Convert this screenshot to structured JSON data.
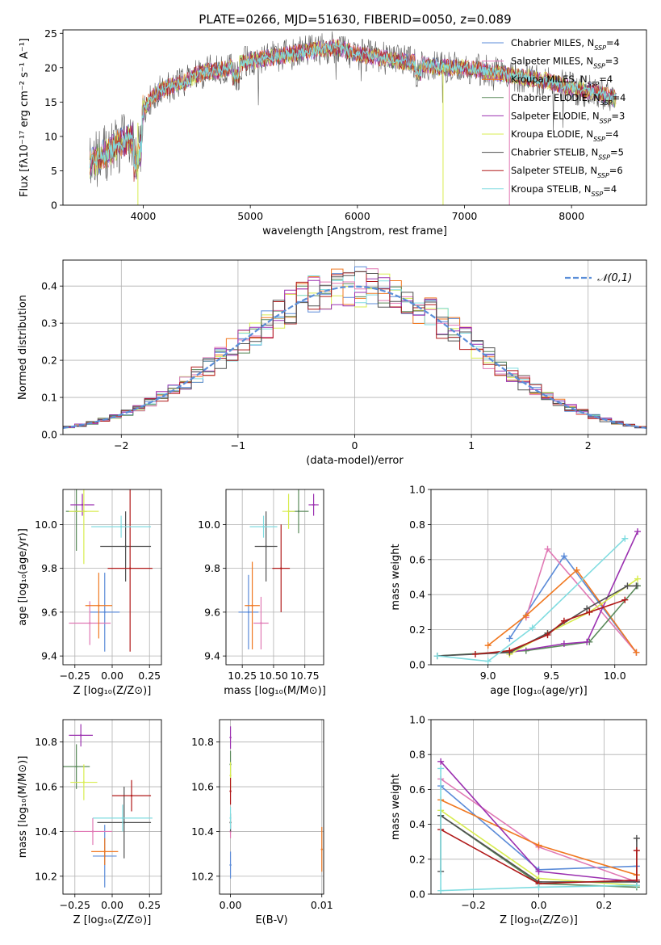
{
  "palette": {
    "cm": "#5b8bd8",
    "sm": "#e078b4",
    "km": "#f07820",
    "ce": "#5a8a5a",
    "se": "#9b30b0",
    "ke": "#d8ec50",
    "cs": "#505050",
    "ss": "#b01818",
    "ks": "#80dce0"
  },
  "chart_data": [
    {
      "id": "spectrum",
      "type": "line",
      "title": "PLATE=0266, MJD=51630, FIBERID=0050, z=0.089",
      "xlabel": "wavelength [Angstrom, rest frame]",
      "ylabel": "Flux [fλ10⁻¹⁷ erg cm⁻² s⁻¹ A⁻¹]",
      "xlim": [
        3250,
        8700
      ],
      "ylim": [
        0,
        25.5
      ],
      "xticks": [
        4000,
        5000,
        6000,
        7000,
        8000
      ],
      "yticks": [
        0,
        5,
        10,
        15,
        20,
        25
      ],
      "grid": false,
      "legend_position": "top-right",
      "legend": [
        {
          "key": "cm",
          "label": "Chabrier MILES, N_SSP=4"
        },
        {
          "key": "sm",
          "label": "Salpeter MILES, N_SSP=3"
        },
        {
          "key": "km",
          "label": "Kroupa MILES, N_SSP=4"
        },
        {
          "key": "ce",
          "label": "Chabrier ELODIE, N_SSP=4"
        },
        {
          "key": "se",
          "label": "Salpeter ELODIE, N_SSP=3"
        },
        {
          "key": "ke",
          "label": "Kroupa ELODIE, N_SSP=4"
        },
        {
          "key": "cs",
          "label": "Chabrier STELIB, N_SSP=5"
        },
        {
          "key": "ss",
          "label": "Salpeter STELIB, N_SSP=6"
        },
        {
          "key": "ks",
          "label": "Kroupa STELIB, N_SSP=4"
        }
      ],
      "continuum_x": [
        3500,
        3600,
        3700,
        3800,
        3900,
        4000,
        4100,
        4200,
        4300,
        4400,
        4500,
        4600,
        4700,
        4800,
        4900,
        5000,
        5200,
        5400,
        5600,
        5800,
        6000,
        6200,
        6400,
        6600,
        6800,
        7000,
        7200,
        7400,
        7600,
        7800,
        8000,
        8200,
        8400
      ],
      "continuum_y": [
        6,
        7,
        8,
        9,
        10,
        14,
        16,
        17,
        17.5,
        18,
        19,
        19.5,
        19.5,
        20,
        20.5,
        21,
        21.5,
        22,
        22.5,
        23,
        22,
        21.5,
        21,
        20.5,
        20,
        20,
        19.5,
        19,
        18.5,
        18,
        17,
        16.5,
        15.5
      ],
      "spikes": [
        {
          "x": 3950,
          "y": 0,
          "key": "ke"
        },
        {
          "x": 6800,
          "y": 0,
          "key": "ke"
        },
        {
          "x": 7420,
          "y": 0,
          "key": "sm"
        }
      ]
    },
    {
      "id": "residuals",
      "type": "histogram",
      "xlabel": "(data-model)/error",
      "ylabel": "Normed distribution",
      "xlim": [
        -2.5,
        2.5
      ],
      "ylim": [
        0,
        0.47
      ],
      "xticks": [
        -2,
        -1,
        0,
        1,
        2
      ],
      "yticks": [
        0.0,
        0.1,
        0.2,
        0.3,
        0.4
      ],
      "grid": true,
      "bin_width": 0.1,
      "reference_label": "𝒩(0,1)",
      "legend_position": "top-right"
    },
    {
      "id": "age-vs-z",
      "type": "scatter",
      "xlabel": "Z [log₁₀(Z/Z⊙)]",
      "ylabel": "age  [log₁₀(age/yr)]",
      "xlim": [
        -0.33,
        0.33
      ],
      "ylim": [
        9.36,
        10.16
      ],
      "xticks": [
        -0.25,
        0.0,
        0.25
      ],
      "yticks": [
        9.4,
        9.6,
        9.8,
        10.0
      ],
      "grid": true,
      "points": [
        {
          "key": "cm",
          "x": -0.05,
          "y": 9.6,
          "xerr": 0.1,
          "yerr": 0.18
        },
        {
          "key": "sm",
          "x": -0.15,
          "y": 9.55,
          "xerr": 0.14,
          "yerr": 0.1
        },
        {
          "key": "km",
          "x": -0.09,
          "y": 9.63,
          "xerr": 0.09,
          "yerr": 0.15
        },
        {
          "key": "ce",
          "x": -0.24,
          "y": 10.06,
          "xerr": 0.07,
          "yerr": 0.18
        },
        {
          "key": "se",
          "x": -0.2,
          "y": 10.09,
          "xerr": 0.08,
          "yerr": 0.05
        },
        {
          "key": "ke",
          "x": -0.19,
          "y": 10.06,
          "xerr": 0.1,
          "yerr": 0.24
        },
        {
          "key": "cs",
          "x": 0.09,
          "y": 9.9,
          "xerr": 0.17,
          "yerr": 0.16
        },
        {
          "key": "ss",
          "x": 0.12,
          "y": 9.8,
          "xerr": 0.15,
          "yerr": 0.38
        },
        {
          "key": "ks",
          "x": 0.06,
          "y": 9.99,
          "xerr": 0.2,
          "yerr": 0.05
        }
      ]
    },
    {
      "id": "age-vs-mass",
      "type": "scatter",
      "xlabel": "mass [log₁₀(M/M⊙)]",
      "ylabel": "",
      "xlim": [
        10.12,
        10.9
      ],
      "ylim": [
        9.36,
        10.16
      ],
      "xticks": [
        10.25,
        10.5,
        10.75
      ],
      "yticks": [
        9.4,
        9.6,
        9.8,
        10.0
      ],
      "grid": true,
      "points": [
        {
          "key": "cm",
          "x": 10.3,
          "y": 9.6,
          "xerr": 0.08,
          "yerr": 0.17
        },
        {
          "key": "sm",
          "x": 10.4,
          "y": 9.55,
          "xerr": 0.06,
          "yerr": 0.12
        },
        {
          "key": "km",
          "x": 10.33,
          "y": 9.63,
          "xerr": 0.06,
          "yerr": 0.2
        },
        {
          "key": "ce",
          "x": 10.7,
          "y": 10.06,
          "xerr": 0.08,
          "yerr": 0.1
        },
        {
          "key": "se",
          "x": 10.82,
          "y": 10.09,
          "xerr": 0.04,
          "yerr": 0.05
        },
        {
          "key": "ke",
          "x": 10.62,
          "y": 10.06,
          "xerr": 0.05,
          "yerr": 0.08
        },
        {
          "key": "cs",
          "x": 10.44,
          "y": 9.9,
          "xerr": 0.09,
          "yerr": 0.16
        },
        {
          "key": "ss",
          "x": 10.56,
          "y": 9.8,
          "xerr": 0.07,
          "yerr": 0.2
        },
        {
          "key": "ks",
          "x": 10.42,
          "y": 9.99,
          "xerr": 0.11,
          "yerr": 0.05
        }
      ]
    },
    {
      "id": "mass-weight-vs-age",
      "type": "line",
      "xlabel": "age  [log₁₀(age/yr)]",
      "ylabel": "mass weight",
      "xlim": [
        8.55,
        10.25
      ],
      "ylim": [
        0,
        1
      ],
      "xticks": [
        9.0,
        9.5,
        10.0
      ],
      "yticks": [
        0.0,
        0.2,
        0.4,
        0.6,
        0.8,
        1.0
      ],
      "grid": true,
      "series": [
        {
          "key": "cm",
          "x": [
            9.17,
            9.6,
            10.17
          ],
          "y": [
            0.15,
            0.62,
            0.07
          ]
        },
        {
          "key": "sm",
          "x": [
            9.3,
            9.47,
            10.17
          ],
          "y": [
            0.27,
            0.66,
            0.07
          ]
        },
        {
          "key": "km",
          "x": [
            9.0,
            9.3,
            9.7,
            10.17
          ],
          "y": [
            0.11,
            0.28,
            0.54,
            0.07
          ]
        },
        {
          "key": "ce",
          "x": [
            8.6,
            9.3,
            9.8,
            10.18
          ],
          "y": [
            0.05,
            0.08,
            0.13,
            0.45
          ]
        },
        {
          "key": "se",
          "x": [
            9.17,
            9.6,
            9.78,
            10.18
          ],
          "y": [
            0.07,
            0.12,
            0.13,
            0.76
          ]
        },
        {
          "key": "ke",
          "x": [
            9.17,
            9.47,
            9.8,
            10.18
          ],
          "y": [
            0.06,
            0.18,
            0.3,
            0.49
          ]
        },
        {
          "key": "cs",
          "x": [
            8.6,
            9.17,
            9.47,
            9.78,
            10.1,
            10.17
          ],
          "y": [
            0.05,
            0.07,
            0.18,
            0.32,
            0.45,
            0.45
          ]
        },
        {
          "key": "ss",
          "x": [
            8.9,
            9.17,
            9.47,
            9.6,
            9.8,
            10.08
          ],
          "y": [
            0.06,
            0.08,
            0.17,
            0.25,
            0.3,
            0.37
          ]
        },
        {
          "key": "ks",
          "x": [
            8.6,
            9.0,
            9.35,
            10.08
          ],
          "y": [
            0.05,
            0.02,
            0.21,
            0.72
          ]
        }
      ]
    },
    {
      "id": "mass-vs-z",
      "type": "scatter",
      "xlabel": "Z [log₁₀(Z/Z⊙)]",
      "ylabel": "mass [log₁₀(M/M⊙)]",
      "xlim": [
        -0.33,
        0.33
      ],
      "ylim": [
        10.12,
        10.9
      ],
      "xticks": [
        -0.25,
        0.0,
        0.25
      ],
      "yticks": [
        10.2,
        10.4,
        10.6,
        10.8
      ],
      "grid": true,
      "points": [
        {
          "key": "cm",
          "x": -0.05,
          "y": 10.29,
          "xerr": 0.08,
          "yerr": 0.14
        },
        {
          "key": "sm",
          "x": -0.13,
          "y": 10.4,
          "xerr": 0.13,
          "yerr": 0.06
        },
        {
          "key": "km",
          "x": -0.05,
          "y": 10.31,
          "xerr": 0.09,
          "yerr": 0.06
        },
        {
          "key": "ce",
          "x": -0.24,
          "y": 10.69,
          "xerr": 0.09,
          "yerr": 0.1
        },
        {
          "key": "se",
          "x": -0.21,
          "y": 10.83,
          "xerr": 0.08,
          "yerr": 0.05
        },
        {
          "key": "ke",
          "x": -0.19,
          "y": 10.62,
          "xerr": 0.09,
          "yerr": 0.08
        },
        {
          "key": "cs",
          "x": 0.08,
          "y": 10.44,
          "xerr": 0.18,
          "yerr": 0.16
        },
        {
          "key": "ss",
          "x": 0.13,
          "y": 10.56,
          "xerr": 0.13,
          "yerr": 0.07
        },
        {
          "key": "ks",
          "x": 0.07,
          "y": 10.46,
          "xerr": 0.2,
          "yerr": 0.06
        }
      ]
    },
    {
      "id": "mass-vs-ebv",
      "type": "scatter",
      "xlabel": "E(B-V)",
      "ylabel": "",
      "xlim": [
        -0.0012,
        0.0102
      ],
      "ylim": [
        10.12,
        10.9
      ],
      "xticks": [
        0.0,
        0.01
      ],
      "xtick_labels": [
        "0.00",
        "0.01"
      ],
      "yticks": [
        10.2,
        10.4,
        10.6,
        10.8
      ],
      "grid": true,
      "points": [
        {
          "key": "cm",
          "x": 0.0,
          "y": 10.25,
          "yerr": 0.06
        },
        {
          "key": "sm",
          "x": 0.0,
          "y": 10.4,
          "yerr": 0.03
        },
        {
          "key": "km",
          "x": 0.01,
          "y": 10.32,
          "yerr": 0.1
        },
        {
          "key": "ce",
          "x": 0.0,
          "y": 10.7,
          "yerr": 0.06
        },
        {
          "key": "se",
          "x": 0.0,
          "y": 10.82,
          "yerr": 0.05
        },
        {
          "key": "ke",
          "x": 0.0,
          "y": 10.65,
          "yerr": 0.06
        },
        {
          "key": "cs",
          "x": 0.0,
          "y": 10.44,
          "yerr": 0.04
        },
        {
          "key": "ss",
          "x": 0.0,
          "y": 10.58,
          "yerr": 0.06
        },
        {
          "key": "ks",
          "x": 0.0,
          "y": 10.46,
          "yerr": 0.05
        }
      ]
    },
    {
      "id": "mass-weight-vs-z",
      "type": "line",
      "xlabel": "Z [log₁₀(Z/Z⊙)]",
      "ylabel": "mass weight",
      "xlim": [
        -0.33,
        0.33
      ],
      "ylim": [
        0,
        1
      ],
      "xticks": [
        -0.2,
        0.0,
        0.2
      ],
      "yticks": [
        0.0,
        0.2,
        0.4,
        0.6,
        0.8,
        1.0
      ],
      "grid": true,
      "series": [
        {
          "key": "cm",
          "x": [
            -0.3,
            0.0,
            0.3
          ],
          "y": [
            0.62,
            0.14,
            0.16
          ]
        },
        {
          "key": "sm",
          "x": [
            -0.3,
            0.0,
            0.3
          ],
          "y": [
            0.66,
            0.27,
            0.07
          ]
        },
        {
          "key": "km",
          "x": [
            -0.3,
            0.0,
            0.3
          ],
          "y": [
            0.54,
            0.28,
            0.11
          ]
        },
        {
          "key": "ce",
          "x": [
            -0.3,
            0.0,
            0.3
          ],
          "y": [
            0.45,
            0.06,
            0.04
          ]
        },
        {
          "key": "se",
          "x": [
            -0.3,
            0.0,
            0.3
          ],
          "y": [
            0.76,
            0.13,
            0.07
          ]
        },
        {
          "key": "ke",
          "x": [
            -0.3,
            0.0,
            0.3
          ],
          "y": [
            0.48,
            0.09,
            0.05
          ]
        },
        {
          "key": "cs",
          "x": [
            -0.3,
            -0.3,
            0.0,
            0.3,
            0.3
          ],
          "y": [
            0.13,
            0.45,
            0.07,
            0.07,
            0.32
          ]
        },
        {
          "key": "ss",
          "x": [
            -0.3,
            0.0,
            0.3,
            0.3
          ],
          "y": [
            0.37,
            0.06,
            0.08,
            0.25
          ]
        },
        {
          "key": "ks",
          "x": [
            -0.3,
            -0.3,
            0.0,
            0.3
          ],
          "y": [
            0.72,
            0.02,
            0.04,
            0.05
          ]
        }
      ]
    }
  ]
}
